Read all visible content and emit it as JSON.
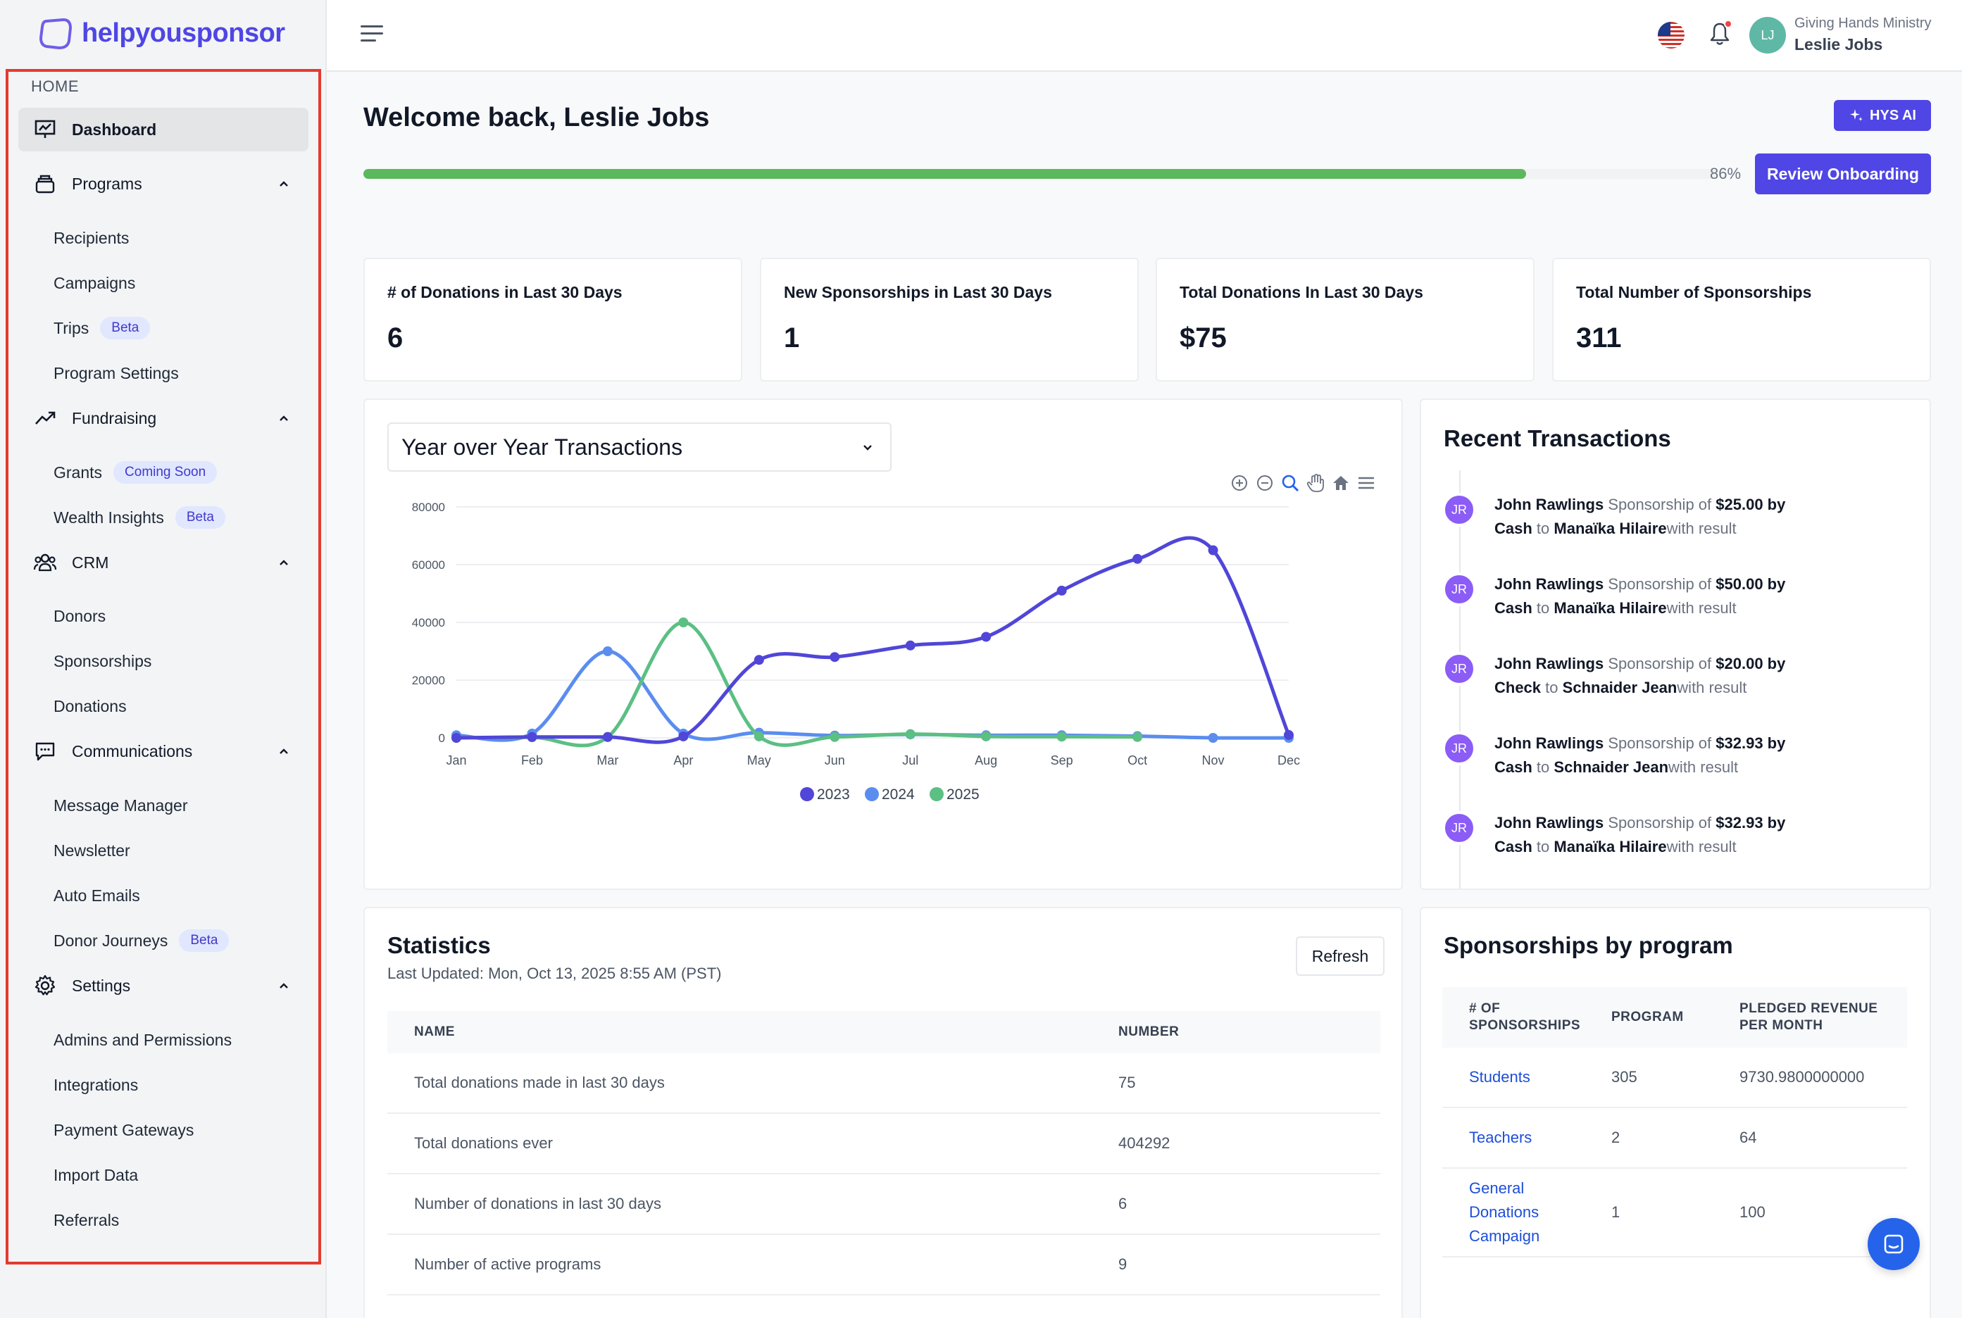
{
  "brand": {
    "name": "helpyousponsor"
  },
  "sidebar": {
    "home_label": "HOME",
    "dashboard": "Dashboard",
    "programs": {
      "label": "Programs",
      "items": [
        {
          "label": "Recipients",
          "badge": ""
        },
        {
          "label": "Campaigns",
          "badge": ""
        },
        {
          "label": "Trips",
          "badge": "Beta"
        },
        {
          "label": "Program Settings",
          "badge": ""
        }
      ]
    },
    "fundraising": {
      "label": "Fundraising",
      "items": [
        {
          "label": "Grants",
          "badge": "Coming Soon"
        },
        {
          "label": "Wealth Insights",
          "badge": "Beta"
        }
      ]
    },
    "crm": {
      "label": "CRM",
      "items": [
        {
          "label": "Donors",
          "badge": ""
        },
        {
          "label": "Sponsorships",
          "badge": ""
        },
        {
          "label": "Donations",
          "badge": ""
        }
      ]
    },
    "communications": {
      "label": "Communications",
      "items": [
        {
          "label": "Message Manager",
          "badge": ""
        },
        {
          "label": "Newsletter",
          "badge": ""
        },
        {
          "label": "Auto Emails",
          "badge": ""
        },
        {
          "label": "Donor Journeys",
          "badge": "Beta"
        }
      ]
    },
    "settings": {
      "label": "Settings",
      "items": [
        {
          "label": "Admins and Permissions",
          "badge": ""
        },
        {
          "label": "Integrations",
          "badge": ""
        },
        {
          "label": "Payment Gateways",
          "badge": ""
        },
        {
          "label": "Import Data",
          "badge": ""
        },
        {
          "label": "Referrals",
          "badge": ""
        }
      ]
    }
  },
  "header": {
    "org_name": "Giving Hands Ministry",
    "user_name": "Leslie Jobs",
    "user_initials": "LJ",
    "icons": [
      "menu-icon",
      "us-flag-icon",
      "bell-icon"
    ]
  },
  "main": {
    "welcome": "Welcome back, Leslie Jobs",
    "hys_ai_label": "HYS AI",
    "onboarding": {
      "progress_fraction": 0.86,
      "percent_label": "86%",
      "button": "Review Onboarding"
    },
    "kpis": [
      {
        "label": "# of Donations in Last 30 Days",
        "value": "6"
      },
      {
        "label": "New Sponsorships in Last 30 Days",
        "value": "1"
      },
      {
        "label": "Total Donations In Last 30 Days",
        "value": "$75"
      },
      {
        "label": "Total Number of Sponsorships",
        "value": "311"
      }
    ]
  },
  "chart_panel": {
    "select_value": "Year over Year Transactions"
  },
  "chart_data": {
    "type": "line",
    "title": "",
    "categories": [
      "Jan",
      "Feb",
      "Mar",
      "Apr",
      "May",
      "Jun",
      "Jul",
      "Aug",
      "Sep",
      "Oct",
      "Nov",
      "Dec"
    ],
    "ylim": [
      0,
      80000
    ],
    "yticks": [
      "80000",
      "60000",
      "40000",
      "20000",
      "0"
    ],
    "series": [
      {
        "name": "2023",
        "color": "#5046d8",
        "values": [
          0,
          300,
          300,
          500,
          27000,
          28000,
          32000,
          35000,
          51000,
          62000,
          65000,
          1000
        ]
      },
      {
        "name": "2024",
        "color": "#5b8def",
        "values": [
          900,
          1500,
          30000,
          1500,
          1800,
          800,
          1200,
          900,
          900,
          600,
          0,
          0
        ]
      },
      {
        "name": "2025",
        "color": "#5cbf83",
        "values": [
          0,
          200,
          300,
          40000,
          500,
          300,
          1300,
          500,
          400,
          300,
          null,
          null
        ]
      }
    ],
    "grid": true,
    "legend": "bottom-center"
  },
  "transactions": {
    "title": "Recent Transactions",
    "items": [
      {
        "initials": "JR",
        "donor": "John Rawlings",
        "type": "Sponsorship of",
        "amount": "$25.00 by",
        "method": "Cash",
        "to": "to",
        "recipient": "Manaïka Hilaire",
        "result": "with result"
      },
      {
        "initials": "JR",
        "donor": "John Rawlings",
        "type": "Sponsorship of",
        "amount": "$50.00 by",
        "method": "Cash",
        "to": "to",
        "recipient": "Manaïka Hilaire",
        "result": "with result"
      },
      {
        "initials": "JR",
        "donor": "John Rawlings",
        "type": "Sponsorship of",
        "amount": "$20.00 by",
        "method": "Check",
        "to": "to",
        "recipient": "Schnaider Jean",
        "result": "with result"
      },
      {
        "initials": "JR",
        "donor": "John Rawlings",
        "type": "Sponsorship of",
        "amount": "$32.93 by",
        "method": "Cash",
        "to": "to",
        "recipient": "Schnaider Jean",
        "result": "with result"
      },
      {
        "initials": "JR",
        "donor": "John Rawlings",
        "type": "Sponsorship of",
        "amount": "$32.93 by",
        "method": "Cash",
        "to": "to",
        "recipient": "Manaïka Hilaire",
        "result": "with result"
      }
    ]
  },
  "statistics": {
    "title": "Statistics",
    "last_updated": "Last Updated: Mon, Oct 13, 2025 8:55 AM (PST)",
    "refresh": "Refresh",
    "columns": [
      "NAME",
      "NUMBER"
    ],
    "rows": [
      [
        "Total donations made in last 30 days",
        "75"
      ],
      [
        "Total donations ever",
        "404292"
      ],
      [
        "Number of donations in last 30 days",
        "6"
      ],
      [
        "Number of active programs",
        "9"
      ]
    ]
  },
  "sponsorships_by_program": {
    "title": "Sponsorships by program",
    "columns": [
      "# OF SPONSORSHIPS",
      "PROGRAM",
      "PLEDGED REVENUE PER MONTH"
    ],
    "rows": [
      [
        "Students",
        "305",
        "9730.9800000000"
      ],
      [
        "Teachers",
        "2",
        "64"
      ],
      [
        "General Donations Campaign",
        "1",
        "100"
      ]
    ]
  }
}
